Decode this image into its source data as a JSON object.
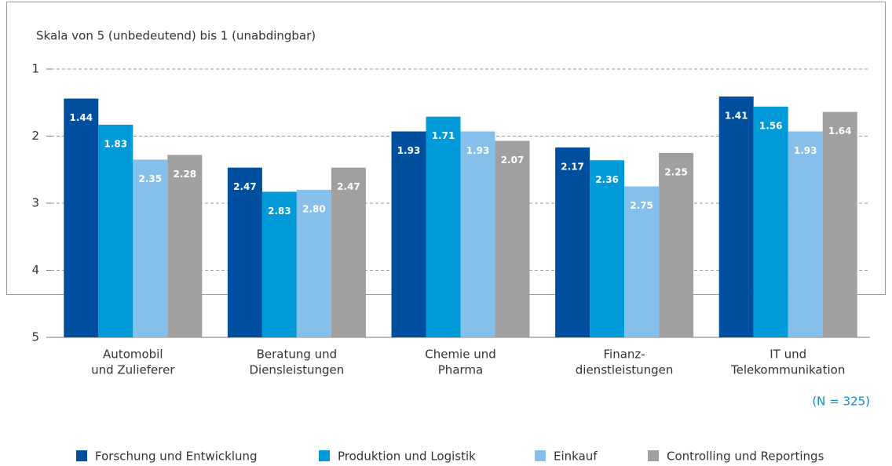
{
  "chart_data": {
    "type": "bar",
    "y_axis_label": "Skala von 5 (unbedeutend) bis 1 (unabdingbar)",
    "annotation": "(N = 325)",
    "categories": [
      [
        "Automobil",
        "und Zulieferer"
      ],
      [
        "Beratung und",
        "Diensleistungen"
      ],
      [
        "Chemie und",
        "Pharma"
      ],
      [
        "Finanz-",
        "dienstleistungen"
      ],
      [
        "IT und",
        "Telekommunikation"
      ]
    ],
    "series": [
      {
        "name": "Forschung und Entwicklung",
        "color": "#004f9f",
        "values": [
          1.44,
          2.47,
          1.93,
          2.17,
          1.41
        ],
        "value_labels": [
          "1.44",
          "2.47",
          "1.93",
          "2.17",
          "1.41"
        ]
      },
      {
        "name": "Produktion und Logistik",
        "color": "#009ad9",
        "values": [
          1.83,
          2.83,
          1.71,
          2.36,
          1.56
        ],
        "value_labels": [
          "1.83",
          "2.83",
          "1.71",
          "2.36",
          "1.56"
        ]
      },
      {
        "name": "Einkauf",
        "color": "#86c0ea",
        "values": [
          2.35,
          2.8,
          1.93,
          2.75,
          1.93
        ],
        "value_labels": [
          "2.35",
          "2.80",
          "1.93",
          "2.75",
          "1.93"
        ]
      },
      {
        "name": "Controlling und Reportings",
        "color": "#a0a0a0",
        "values": [
          2.28,
          2.47,
          2.07,
          2.25,
          1.64
        ],
        "value_labels": [
          "2.28",
          "2.47",
          "2.07",
          "2.25",
          "1.64"
        ]
      }
    ],
    "ylim": [
      5,
      1
    ],
    "yticks": [
      1,
      2,
      3,
      4,
      5
    ],
    "grid": true
  }
}
